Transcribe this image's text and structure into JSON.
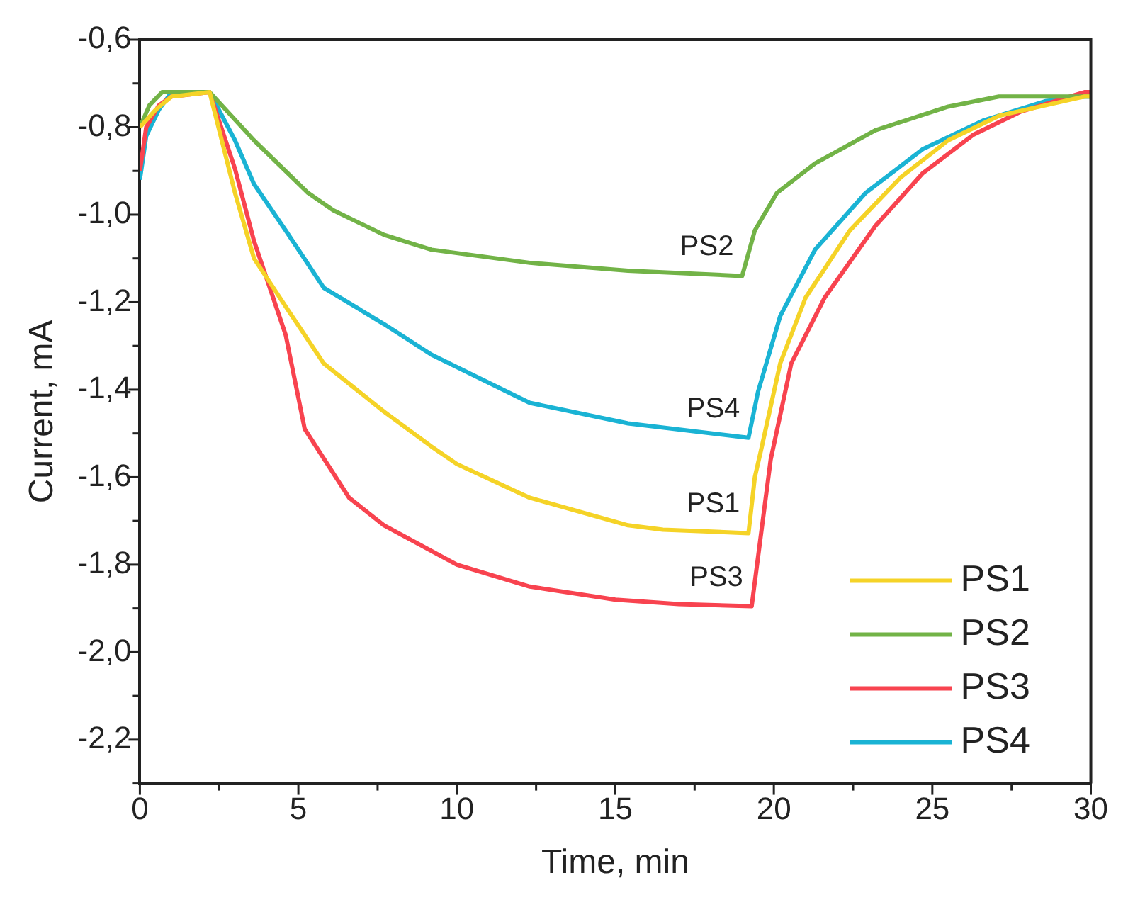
{
  "chart_data": {
    "type": "line",
    "xlabel": "Time, min",
    "ylabel": "Current, mA",
    "xlim": [
      0,
      30
    ],
    "ylim": [
      -2.3,
      -0.6
    ],
    "xticks": [
      0,
      {
        "value": 2.5,
        "label": null
      },
      5,
      {
        "value": 7.5,
        "label": null
      },
      10,
      {
        "value": 12.5,
        "label": null
      },
      15,
      {
        "value": 17.5,
        "label": null
      },
      20,
      {
        "value": 22.5,
        "label": null
      },
      25,
      {
        "value": 27.5,
        "label": null
      },
      30
    ],
    "yticks": [
      {
        "value": -2.3,
        "label": null
      },
      {
        "value": -2.2,
        "label": "-2,2"
      },
      {
        "value": -2.1,
        "label": null
      },
      {
        "value": -2.0,
        "label": "-2,0"
      },
      {
        "value": -1.9,
        "label": null
      },
      {
        "value": -1.8,
        "label": "-1,8"
      },
      {
        "value": -1.7,
        "label": null
      },
      {
        "value": -1.6,
        "label": "-1,6"
      },
      {
        "value": -1.5,
        "label": null
      },
      {
        "value": -1.4,
        "label": "-1,4"
      },
      {
        "value": -1.3,
        "label": null
      },
      {
        "value": -1.2,
        "label": "-1,2"
      },
      {
        "value": -1.1,
        "label": null
      },
      {
        "value": -1.0,
        "label": "-1,0"
      },
      {
        "value": -0.9,
        "label": null
      },
      {
        "value": -0.8,
        "label": "-0,8"
      },
      {
        "value": -0.7,
        "label": null
      },
      {
        "value": -0.6,
        "label": "-0,6"
      }
    ],
    "grid": false,
    "legend": "bottom right",
    "marker": "none",
    "line_style": "solid",
    "series": [
      {
        "name": "PS1",
        "color": "#f5d327",
        "x": [
          0,
          0.5,
          1,
          2.2,
          3.0,
          3.6,
          4.6,
          5.8,
          7.7,
          9.2,
          10,
          12.3,
          15.4,
          16.5,
          19.2,
          19.4,
          19.6,
          20.2,
          21.0,
          22.4,
          24.0,
          25.5,
          27.1,
          29.8,
          30
        ],
        "values": [
          -0.8,
          -0.76,
          -0.73,
          -0.72,
          -0.95,
          -1.1,
          -1.21,
          -1.34,
          -1.45,
          -1.53,
          -1.57,
          -1.647,
          -1.71,
          -1.72,
          -1.728,
          -1.6,
          -1.537,
          -1.34,
          -1.19,
          -1.036,
          -0.915,
          -0.83,
          -0.774,
          -0.73,
          -0.73
        ]
      },
      {
        "name": "PS2",
        "color": "#72b347",
        "x": [
          0,
          0.3,
          0.7,
          2.2,
          3.6,
          5.3,
          6.1,
          7.7,
          9.2,
          12.3,
          15.4,
          19.0,
          19.4,
          20.1,
          21.3,
          23.2,
          25.5,
          27.1,
          30
        ],
        "values": [
          -0.8,
          -0.75,
          -0.72,
          -0.72,
          -0.83,
          -0.95,
          -0.99,
          -1.046,
          -1.08,
          -1.11,
          -1.128,
          -1.14,
          -1.036,
          -0.95,
          -0.883,
          -0.807,
          -0.753,
          -0.73,
          -0.73
        ]
      },
      {
        "name": "PS3",
        "color": "#f8434f",
        "x": [
          0,
          0.2,
          0.6,
          1,
          2.2,
          3.0,
          3.6,
          4.6,
          5.2,
          6.6,
          7.7,
          10,
          12.3,
          15,
          17,
          19.3,
          19.9,
          20.55,
          21.6,
          23.2,
          24.7,
          26.3,
          27.8,
          29.8,
          30
        ],
        "values": [
          -0.9,
          -0.8,
          -0.75,
          -0.73,
          -0.72,
          -0.895,
          -1.06,
          -1.275,
          -1.49,
          -1.647,
          -1.71,
          -1.8,
          -1.85,
          -1.88,
          -1.89,
          -1.895,
          -1.56,
          -1.34,
          -1.19,
          -1.026,
          -0.905,
          -0.817,
          -0.764,
          -0.72,
          -0.72
        ]
      },
      {
        "name": "PS4",
        "color": "#1ab3d4",
        "x": [
          0,
          0.2,
          0.6,
          1,
          2.2,
          3.0,
          3.6,
          4.6,
          5.8,
          7.7,
          9.2,
          12.3,
          15.4,
          19.2,
          19.5,
          20.2,
          21.3,
          22.9,
          24.7,
          26.6,
          28.6,
          29.8,
          30
        ],
        "values": [
          -0.92,
          -0.82,
          -0.76,
          -0.72,
          -0.72,
          -0.83,
          -0.93,
          -1.036,
          -1.167,
          -1.25,
          -1.32,
          -1.43,
          -1.477,
          -1.51,
          -1.405,
          -1.232,
          -1.08,
          -0.95,
          -0.85,
          -0.785,
          -0.74,
          -0.73,
          -0.73
        ]
      }
    ],
    "annotations": [
      {
        "text": "PS2",
        "x": 19.0,
        "y": -1.14
      },
      {
        "text": "PS4",
        "x": 19.2,
        "y": -1.51
      },
      {
        "text": "PS1",
        "x": 19.2,
        "y": -1.728
      },
      {
        "text": "PS3",
        "x": 19.3,
        "y": -1.895
      }
    ]
  }
}
